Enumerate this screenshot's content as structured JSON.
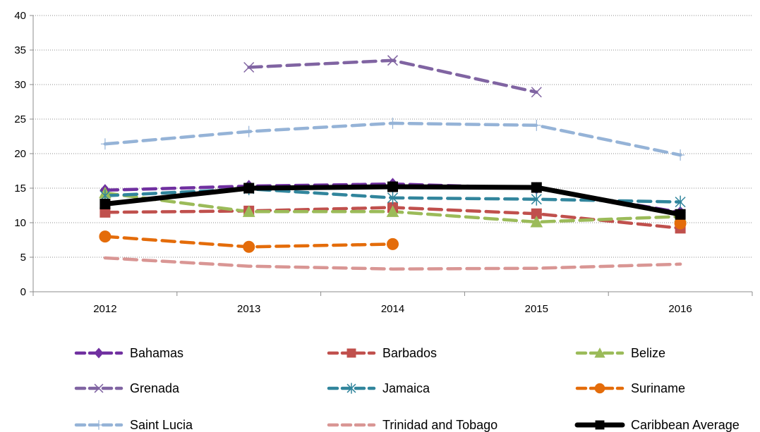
{
  "chart_data": {
    "type": "line",
    "title": "",
    "xlabel": "",
    "ylabel": "",
    "categories": [
      "2012",
      "2013",
      "2014",
      "2015",
      "2016"
    ],
    "ylim": [
      0,
      40
    ],
    "yticks": [
      "0",
      "5",
      "10",
      "15",
      "20",
      "25",
      "30",
      "35",
      "40"
    ],
    "grid": "horizontal-dotted",
    "legend_position": "bottom",
    "series": [
      {
        "name": "Bahamas",
        "values": [
          14.7,
          15.3,
          15.6,
          15.0,
          11.5
        ],
        "color": "#7030A0",
        "marker": "diamond",
        "dash": "dashed"
      },
      {
        "name": "Barbados",
        "values": [
          11.5,
          11.7,
          12.2,
          11.3,
          9.2
        ],
        "color": "#C0504D",
        "marker": "square",
        "dash": "dashed"
      },
      {
        "name": "Belize",
        "values": [
          14.3,
          11.6,
          11.6,
          10.1,
          10.9
        ],
        "color": "#9BBB59",
        "marker": "triangle",
        "dash": "dashed"
      },
      {
        "name": "Grenada",
        "values": [
          null,
          32.5,
          33.5,
          28.9,
          null
        ],
        "color": "#8064A2",
        "marker": "x",
        "dash": "dashed"
      },
      {
        "name": "Jamaica",
        "values": [
          13.9,
          14.9,
          13.6,
          13.4,
          13.0
        ],
        "color": "#31859C",
        "marker": "star",
        "dash": "dashed"
      },
      {
        "name": "Suriname",
        "values": [
          8.0,
          6.5,
          6.9,
          null,
          9.9
        ],
        "color": "#E46C0A",
        "marker": "circle",
        "dash": "dashed"
      },
      {
        "name": "Saint Lucia",
        "values": [
          21.4,
          23.2,
          24.4,
          24.1,
          19.8
        ],
        "color": "#95B3D7",
        "marker": "plus",
        "dash": "dashed"
      },
      {
        "name": "Trinidad and Tobago",
        "values": [
          4.9,
          3.7,
          3.3,
          3.4,
          4.0
        ],
        "color": "#D99694",
        "marker": "none",
        "dash": "dashed"
      },
      {
        "name": "Caribbean Average",
        "values": [
          12.7,
          15.0,
          15.2,
          15.1,
          11.2
        ],
        "color": "#000000",
        "marker": "square",
        "dash": "solid"
      }
    ]
  }
}
